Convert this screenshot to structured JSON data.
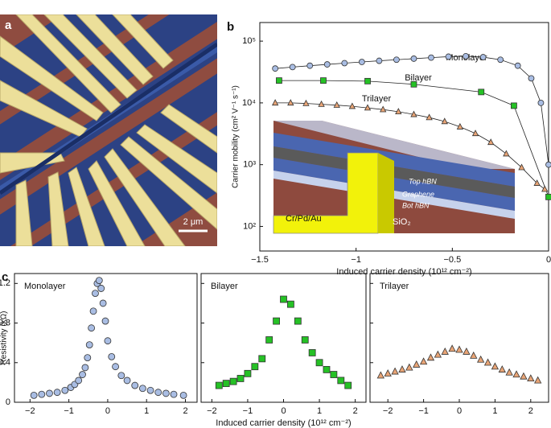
{
  "panel_labels": [
    "a",
    "b",
    "c"
  ],
  "image_a": {
    "scale_bar": "2 μm"
  },
  "chart_data": [
    {
      "type": "line",
      "log_y": true,
      "x_label": "Induced carrier density (10¹² cm⁻²)",
      "y_label": "Carrier mobility (cm² V⁻¹ s⁻¹)",
      "xlim": [
        -1.5,
        0
      ],
      "ylim": [
        40,
        200000
      ],
      "xticks": [
        {
          "value": -1.5,
          "label": "−1.5"
        },
        {
          "value": -1,
          "label": "−1"
        },
        {
          "value": -0.5,
          "label": "−0.5"
        },
        0
      ],
      "yticks": [
        {
          "value": 100,
          "label": "10²"
        },
        {
          "value": 1000,
          "label": "10³"
        },
        {
          "value": 10000,
          "label": "10⁴"
        },
        {
          "value": 100000,
          "label": "10⁵"
        }
      ],
      "series": [
        {
          "name": "Monolayer",
          "color": "#a9bde3",
          "marker": "circle",
          "x": [
            -1.42,
            -1.33,
            -1.24,
            -1.15,
            -1.06,
            -0.97,
            -0.88,
            -0.79,
            -0.7,
            -0.61,
            -0.52,
            -0.43,
            -0.34,
            -0.25,
            -0.16,
            -0.09,
            -0.04,
            0
          ],
          "values": [
            36000,
            38000,
            40000,
            42000,
            44000,
            46000,
            48000,
            50000,
            52000,
            54000,
            56000,
            57000,
            55000,
            50000,
            40000,
            25000,
            10000,
            1000
          ]
        },
        {
          "name": "Bilayer",
          "color": "#25c125",
          "marker": "square",
          "x": [
            -1.4,
            -1.17,
            -0.94,
            -0.7,
            -0.35,
            -0.18,
            0
          ],
          "values": [
            23000,
            23000,
            22500,
            20000,
            15000,
            9000,
            300
          ]
        },
        {
          "name": "Trilayer",
          "color": "#e8a476",
          "marker": "triangle",
          "x": [
            -1.42,
            -1.34,
            -1.26,
            -1.18,
            -1.1,
            -1.02,
            -0.94,
            -0.86,
            -0.78,
            -0.7,
            -0.62,
            -0.54,
            -0.46,
            -0.38,
            -0.3,
            -0.22,
            -0.14,
            -0.06,
            -0.02
          ],
          "values": [
            10000,
            10000,
            9800,
            9500,
            9200,
            8800,
            8300,
            7800,
            7200,
            6500,
            5800,
            5000,
            4100,
            3200,
            2300,
            1500,
            900,
            500,
            400
          ]
        }
      ],
      "inset_labels": [
        "Top hBN",
        "Graphene",
        "Bot hBN",
        "Cr/Pd/Au",
        "SiO₂"
      ]
    },
    {
      "type": "scatter",
      "title": "Monolayer",
      "y_label": "Resistivity (kΩ)",
      "ytick_labels": true,
      "xlim": [
        -2.4,
        2.3
      ],
      "ylim": [
        0,
        1.3
      ],
      "xticks": [
        {
          "value": -2,
          "label": "−2"
        },
        {
          "value": -1,
          "label": "−1"
        },
        0,
        1,
        2
      ],
      "yticks": [
        0,
        0.4,
        0.8,
        1.2
      ],
      "series": [
        {
          "color": "#a9bde3",
          "marker": "circle",
          "x": [
            -1.9,
            -1.7,
            -1.5,
            -1.3,
            -1.1,
            -0.95,
            -0.85,
            -0.75,
            -0.65,
            -0.58,
            -0.52,
            -0.47,
            -0.42,
            -0.37,
            -0.32,
            -0.27,
            -0.22,
            -0.17,
            -0.12,
            -0.06,
            0,
            0.1,
            0.2,
            0.35,
            0.5,
            0.7,
            0.9,
            1.1,
            1.3,
            1.5,
            1.7,
            1.95
          ],
          "values": [
            0.07,
            0.08,
            0.09,
            0.1,
            0.12,
            0.15,
            0.18,
            0.22,
            0.28,
            0.35,
            0.45,
            0.58,
            0.75,
            0.92,
            1.1,
            1.2,
            1.23,
            1.15,
            1.0,
            0.82,
            0.62,
            0.46,
            0.36,
            0.27,
            0.22,
            0.17,
            0.14,
            0.12,
            0.1,
            0.09,
            0.08,
            0.07
          ]
        }
      ]
    },
    {
      "type": "scatter",
      "title": "Bilayer",
      "x_label": "Induced carrier density (10¹² cm⁻²)",
      "ytick_labels": false,
      "xlim": [
        -2.3,
        2.3
      ],
      "ylim": [
        0,
        1.3
      ],
      "xticks": [
        {
          "value": -2,
          "label": "−2"
        },
        {
          "value": -1,
          "label": "−1"
        },
        0,
        1,
        2
      ],
      "yticks": [
        0,
        0.4,
        0.8,
        1.2
      ],
      "series": [
        {
          "color": "#25c125",
          "marker": "square",
          "x": [
            -1.8,
            -1.6,
            -1.4,
            -1.2,
            -1.0,
            -0.8,
            -0.6,
            -0.4,
            -0.2,
            0,
            0.2,
            0.4,
            0.6,
            0.8,
            1.0,
            1.2,
            1.4,
            1.6,
            1.8
          ],
          "values": [
            0.17,
            0.19,
            0.21,
            0.24,
            0.29,
            0.36,
            0.44,
            0.63,
            0.82,
            1.04,
            0.99,
            0.82,
            0.63,
            0.5,
            0.4,
            0.33,
            0.28,
            0.22,
            0.17
          ]
        }
      ]
    },
    {
      "type": "scatter",
      "title": "Trilayer",
      "ytick_labels": false,
      "xlim": [
        -2.5,
        2.5
      ],
      "ylim": [
        0,
        1.3
      ],
      "xticks": [
        {
          "value": -2,
          "label": "−2"
        },
        {
          "value": -1,
          "label": "−1"
        },
        0,
        1,
        2
      ],
      "yticks": [
        0,
        0.4,
        0.8,
        1.2
      ],
      "series": [
        {
          "color": "#e8a476",
          "marker": "triangle",
          "x": [
            -2.2,
            -2.0,
            -1.8,
            -1.6,
            -1.4,
            -1.2,
            -1.0,
            -0.8,
            -0.6,
            -0.4,
            -0.2,
            0,
            0.2,
            0.4,
            0.6,
            0.8,
            1.0,
            1.2,
            1.4,
            1.6,
            1.8,
            2.0,
            2.2
          ],
          "values": [
            0.27,
            0.29,
            0.31,
            0.33,
            0.35,
            0.38,
            0.41,
            0.45,
            0.48,
            0.51,
            0.54,
            0.53,
            0.51,
            0.47,
            0.43,
            0.4,
            0.36,
            0.33,
            0.3,
            0.28,
            0.26,
            0.24,
            0.22
          ]
        }
      ]
    }
  ]
}
